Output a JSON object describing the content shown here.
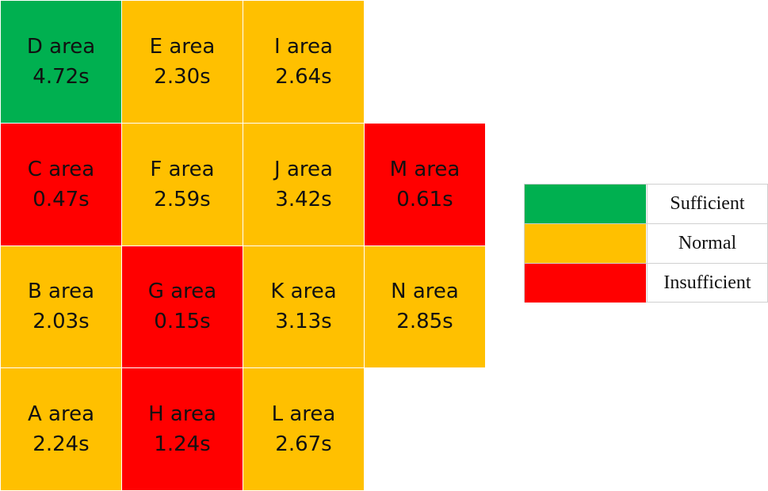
{
  "colors": {
    "sufficient": "#00B050",
    "normal": "#FFC000",
    "insufficient": "#FF0000"
  },
  "cells": [
    {
      "name": "D area",
      "value": "4.72s",
      "status": "sufficient",
      "row": 0,
      "col": 0
    },
    {
      "name": "E area",
      "value": "2.30s",
      "status": "normal",
      "row": 0,
      "col": 1
    },
    {
      "name": "I area",
      "value": "2.64s",
      "status": "normal",
      "row": 0,
      "col": 2
    },
    {
      "name": "C area",
      "value": "0.47s",
      "status": "insufficient",
      "row": 1,
      "col": 0
    },
    {
      "name": "F area",
      "value": "2.59s",
      "status": "normal",
      "row": 1,
      "col": 1
    },
    {
      "name": "J area",
      "value": "3.42s",
      "status": "normal",
      "row": 1,
      "col": 2
    },
    {
      "name": "M area",
      "value": "0.61s",
      "status": "insufficient",
      "row": 1,
      "col": 3
    },
    {
      "name": "B area",
      "value": "2.03s",
      "status": "normal",
      "row": 2,
      "col": 0
    },
    {
      "name": "G area",
      "value": "0.15s",
      "status": "insufficient",
      "row": 2,
      "col": 1
    },
    {
      "name": "K area",
      "value": "3.13s",
      "status": "normal",
      "row": 2,
      "col": 2
    },
    {
      "name": "N area",
      "value": "2.85s",
      "status": "normal",
      "row": 2,
      "col": 3
    },
    {
      "name": "A area",
      "value": "2.24s",
      "status": "normal",
      "row": 3,
      "col": 0
    },
    {
      "name": "H area",
      "value": "1.24s",
      "status": "insufficient",
      "row": 3,
      "col": 1
    },
    {
      "name": "L area",
      "value": "2.67s",
      "status": "normal",
      "row": 3,
      "col": 2
    }
  ],
  "legend": [
    {
      "label": "Sufficient",
      "status": "sufficient"
    },
    {
      "label": "Normal",
      "status": "normal"
    },
    {
      "label": "Insufficient",
      "status": "insufficient"
    }
  ]
}
